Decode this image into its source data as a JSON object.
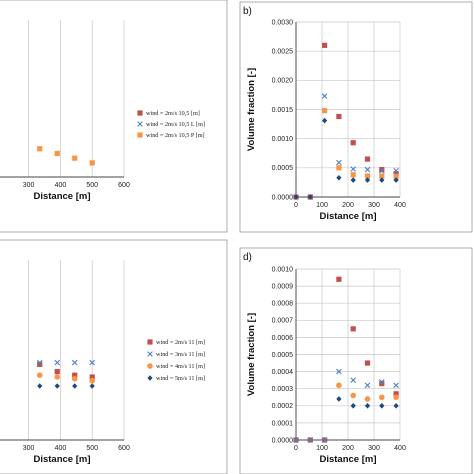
{
  "chart_data": [
    {
      "panel": "",
      "type": "scatter",
      "xlabel": "Distance [m]",
      "ylabel": "",
      "x_ticks": [
        300,
        400,
        500,
        600
      ],
      "xlim": [
        210,
        600
      ],
      "ylim": [
        0,
        1
      ],
      "grid": true,
      "legend_position": "right",
      "series": [
        {
          "name": "wind = 2m/s 10,5 [m]",
          "color": "#c0504d",
          "marker": "square",
          "x": [],
          "y": []
        },
        {
          "name": "wind = 2m/s 10,5 L [m]",
          "color": "#4f81bd",
          "marker": "x",
          "x": [],
          "y": []
        },
        {
          "name": "wind = 2m/s 10,5 P [m]",
          "color": "#f79646",
          "marker": "square",
          "x": [
            335,
            390,
            445,
            500
          ],
          "y": [
            0.18,
            0.15,
            0.12,
            0.09
          ]
        }
      ]
    },
    {
      "panel": "b)",
      "type": "scatter",
      "xlabel": "Distance [m]",
      "ylabel": "Volume fraction [-]",
      "x_ticks": [
        0,
        100,
        200,
        300,
        400
      ],
      "y_ticks": [
        "0.0000",
        "0.0005",
        "0.0010",
        "0.0015",
        "0.0020",
        "0.0025",
        "0.0030"
      ],
      "xlim": [
        0,
        400
      ],
      "ylim": [
        0,
        0.003
      ],
      "grid": true,
      "series": [
        {
          "name": "",
          "color": "#c0504d",
          "marker": "square",
          "x": [
            0,
            55,
            110,
            165,
            220,
            275,
            330,
            385
          ],
          "y": [
            0,
            0,
            0.0026,
            0.00138,
            0.00093,
            0.00065,
            0.00047,
            0.0004
          ]
        },
        {
          "name": "",
          "color": "#4f81bd",
          "marker": "x",
          "x": [
            110,
            165,
            220,
            275,
            330,
            385
          ],
          "y": [
            0.00173,
            0.00059,
            0.00048,
            0.00047,
            0.00045,
            0.00045
          ]
        },
        {
          "name": "",
          "color": "#f79646",
          "marker": "square",
          "x": [
            110,
            165,
            220,
            275,
            330,
            385
          ],
          "y": [
            0.00148,
            0.0005,
            0.00038,
            0.00036,
            0.00036,
            0.00035
          ]
        },
        {
          "name": "",
          "color": "#1f497d",
          "marker": "diamond",
          "x": [
            0,
            55,
            110,
            165,
            220,
            275,
            330,
            385
          ],
          "y": [
            0,
            0,
            0.00131,
            0.00033,
            0.00029,
            0.00029,
            0.00029,
            0.00029
          ]
        }
      ]
    },
    {
      "panel": "",
      "type": "scatter",
      "xlabel": "Distance [m]",
      "ylabel": "",
      "x_ticks": [
        300,
        400,
        500,
        600
      ],
      "xlim": [
        210,
        600
      ],
      "ylim": [
        0,
        1
      ],
      "grid": true,
      "legend_position": "right",
      "series": [
        {
          "name": "wind = 2m/s 11 [m]",
          "color": "#c0504d",
          "marker": "square",
          "x": [
            335,
            390,
            445,
            500
          ],
          "y": [
            0.42,
            0.38,
            0.36,
            0.35
          ]
        },
        {
          "name": "wind = 3m/s 11 [m]",
          "color": "#4f81bd",
          "marker": "x",
          "x": [
            335,
            390,
            445,
            500
          ],
          "y": [
            0.43,
            0.43,
            0.43,
            0.43
          ]
        },
        {
          "name": "wind = 4m/s 11 [m]",
          "color": "#f79646",
          "marker": "circle",
          "x": [
            335,
            390,
            445,
            500
          ],
          "y": [
            0.36,
            0.35,
            0.34,
            0.33
          ]
        },
        {
          "name": "wind = 5m/s 11 [m]",
          "color": "#1f497d",
          "marker": "diamond",
          "x": [
            335,
            390,
            445,
            500
          ],
          "y": [
            0.3,
            0.3,
            0.3,
            0.3
          ]
        }
      ]
    },
    {
      "panel": "d)",
      "type": "scatter",
      "xlabel": "Distance [m]",
      "ylabel": "Volume fraction [-]",
      "x_ticks": [
        0,
        100,
        200,
        300,
        400
      ],
      "y_ticks": [
        "0.0000",
        "0.0001",
        "0.0002",
        "0.0003",
        "0.0004",
        "0.0005",
        "0.0006",
        "0.0007",
        "0.0008",
        "0.0009",
        "0.0010"
      ],
      "xlim": [
        0,
        400
      ],
      "ylim": [
        0,
        0.001
      ],
      "grid": true,
      "series": [
        {
          "name": "",
          "color": "#c0504d",
          "marker": "square",
          "x": [
            0,
            55,
            110,
            165,
            220,
            275,
            330,
            385
          ],
          "y": [
            0,
            0,
            0,
            0.00094,
            0.00065,
            0.00045,
            0.00033,
            0.00027
          ]
        },
        {
          "name": "",
          "color": "#4f81bd",
          "marker": "x",
          "x": [
            0,
            55,
            110,
            165,
            220,
            275,
            330,
            385
          ],
          "y": [
            0,
            0,
            0,
            0.0004,
            0.00035,
            0.00032,
            0.00034,
            0.00032
          ]
        },
        {
          "name": "",
          "color": "#f79646",
          "marker": "circle",
          "x": [
            165,
            220,
            275,
            330,
            385
          ],
          "y": [
            0.00032,
            0.00026,
            0.00024,
            0.00025,
            0.00025
          ]
        },
        {
          "name": "",
          "color": "#1f497d",
          "marker": "diamond",
          "x": [
            165,
            220,
            275,
            330,
            385
          ],
          "y": [
            0.00024,
            0.0002,
            0.0002,
            0.0002,
            0.0002
          ]
        }
      ]
    }
  ]
}
